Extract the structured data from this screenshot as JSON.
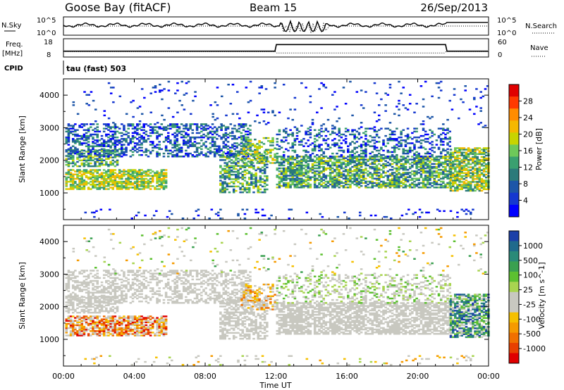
{
  "header": {
    "station": "Goose Bay (fitACF)",
    "beam": "Beam 15",
    "date": "26/Sep/2013"
  },
  "status_panels": {
    "nsky_label": "N.Sky",
    "nsky_ticks": [
      "10^5",
      "10^0"
    ],
    "nsearch_label": "N.Search",
    "nsearch_ticks": [
      "10^5",
      "10^0"
    ],
    "freq_label_1": "Freq.",
    "freq_label_2": "[MHz]",
    "freq_ticks": [
      "18",
      "8"
    ],
    "nave_label": "Nave",
    "nave_ticks": [
      "60",
      "0"
    ],
    "cpid_label": "CPID",
    "cpid_value": "tau (fast) 503"
  },
  "chart_data": [
    {
      "type": "heatmap",
      "panel": "power",
      "xlabel": "",
      "ylabel": "Slant Range [km]",
      "x_ticks": [
        "00:00",
        "04:00",
        "08:00",
        "12:00",
        "16:00",
        "20:00",
        "00:00"
      ],
      "y_ticks": [
        1000,
        2000,
        3000,
        4000
      ],
      "xlim": [
        0,
        24
      ],
      "ylim": [
        180,
        4500
      ],
      "colorbar_label": "Power [dB]",
      "colorbar_ticks": [
        "28",
        "24",
        "20",
        "16",
        "12",
        "8",
        "4"
      ],
      "colorbar_colors": [
        "#e00000",
        "#ff3a00",
        "#ff8c00",
        "#f5b800",
        "#c8d400",
        "#6ec85a",
        "#3aa070",
        "#2b7a7a",
        "#1d56a8",
        "#1538d0",
        "#0000ff"
      ]
    },
    {
      "type": "heatmap",
      "panel": "velocity",
      "xlabel": "Time UT",
      "ylabel": "Slant Range [km]",
      "x_ticks": [
        "00:00",
        "04:00",
        "08:00",
        "12:00",
        "16:00",
        "20:00",
        "00:00"
      ],
      "y_ticks": [
        1000,
        2000,
        3000,
        4000
      ],
      "xlim": [
        0,
        24
      ],
      "ylim": [
        180,
        4500
      ],
      "colorbar_label": "Velocity [m s^-1]",
      "colorbar_ticks": [
        "1000",
        "500",
        "100",
        "25",
        "-25",
        "-100",
        "-500",
        "-1000"
      ],
      "colorbar_colors": [
        "#1c3fa8",
        "#1f6a8c",
        "#2a8a78",
        "#3aa050",
        "#5cc030",
        "#a8d450",
        "#c8c8c0",
        "#c8c8c0",
        "#f5c000",
        "#f59a00",
        "#f07000",
        "#e84000",
        "#e00000"
      ],
      "ground_scatter_color": "#c8c8c0"
    }
  ]
}
